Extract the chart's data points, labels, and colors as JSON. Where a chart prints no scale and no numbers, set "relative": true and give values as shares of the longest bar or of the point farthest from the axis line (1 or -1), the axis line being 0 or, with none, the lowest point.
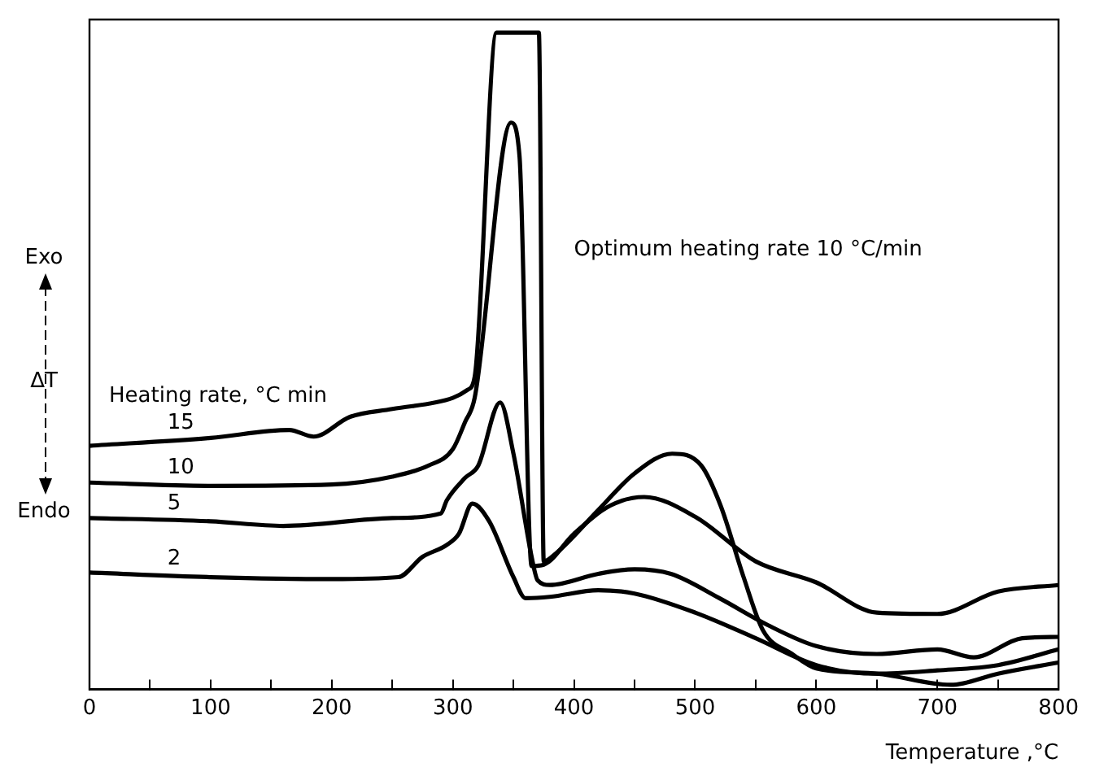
{
  "chart_data": {
    "type": "line",
    "relative": true,
    "xlabel": "Temperature ,°C",
    "ylabel": "ΔT",
    "xlim": [
      0,
      800
    ],
    "xticks": [
      0,
      {
        "value": 50,
        "label": null
      },
      100,
      {
        "value": 150,
        "label": null
      },
      200,
      {
        "value": 250,
        "label": null
      },
      300,
      {
        "value": 350,
        "label": null
      },
      400,
      {
        "value": 450,
        "label": null
      },
      500,
      {
        "value": 550,
        "label": null
      },
      600,
      {
        "value": 650,
        "label": null
      },
      700,
      {
        "value": 750,
        "label": null
      },
      800
    ],
    "grid": false,
    "legend": false,
    "marker": "none",
    "line_style": "solid",
    "annotations": [
      "Heating rate, °C min",
      "Optimum heating rate 10 °C/min",
      "Exo",
      "Endo"
    ],
    "series": [
      {
        "name": "15",
        "color": "#000000",
        "x": [
          0,
          100,
          165,
          185,
          215,
          250,
          300,
          312,
          318,
          336,
          371,
          375,
          385,
          420,
          450,
          481,
          505,
          521,
          540,
          556,
          580,
          600,
          650,
          711,
          750,
          800
        ],
        "values": [
          0.371,
          0.383,
          0.395,
          0.385,
          0.415,
          0.427,
          0.444,
          0.456,
          0.476,
          1.0,
          1.0,
          0.195,
          0.207,
          0.273,
          0.329,
          0.359,
          0.341,
          0.28,
          0.171,
          0.09,
          0.054,
          0.032,
          0.024,
          0.007,
          0.024,
          0.041
        ]
      },
      {
        "name": "10",
        "color": "#000000",
        "x": [
          0,
          100,
          200,
          250,
          280,
          300,
          310,
          318,
          348,
          355,
          365,
          375,
          400,
          430,
          458,
          500,
          550,
          600,
          650,
          700,
          750,
          800
        ],
        "values": [
          0.315,
          0.31,
          0.312,
          0.324,
          0.341,
          0.366,
          0.407,
          0.444,
          0.863,
          0.812,
          0.188,
          0.19,
          0.237,
          0.28,
          0.293,
          0.263,
          0.195,
          0.163,
          0.117,
          0.115,
          0.149,
          0.159
        ]
      },
      {
        "name": "5",
        "color": "#000000",
        "x": [
          0,
          100,
          160,
          250,
          290,
          295,
          310,
          321,
          339,
          350,
          365,
          370,
          380,
          420,
          450,
          480,
          520,
          560,
          600,
          650,
          700,
          730,
          770,
          800
        ],
        "values": [
          0.261,
          0.256,
          0.249,
          0.261,
          0.268,
          0.288,
          0.322,
          0.341,
          0.437,
          0.359,
          0.202,
          0.166,
          0.159,
          0.176,
          0.183,
          0.176,
          0.139,
          0.098,
          0.066,
          0.054,
          0.061,
          0.049,
          0.078,
          0.08
        ]
      },
      {
        "name": "2",
        "color": "#000000",
        "x": [
          0,
          100,
          200,
          255,
          275,
          295,
          305,
          316,
          330,
          350,
          360,
          380,
          420,
          450,
          500,
          550,
          600,
          650,
          700,
          750,
          800
        ],
        "values": [
          0.178,
          0.171,
          0.168,
          0.171,
          0.202,
          0.22,
          0.237,
          0.283,
          0.256,
          0.171,
          0.139,
          0.141,
          0.151,
          0.146,
          0.117,
          0.078,
          0.037,
          0.024,
          0.029,
          0.037,
          0.061
        ]
      }
    ]
  }
}
